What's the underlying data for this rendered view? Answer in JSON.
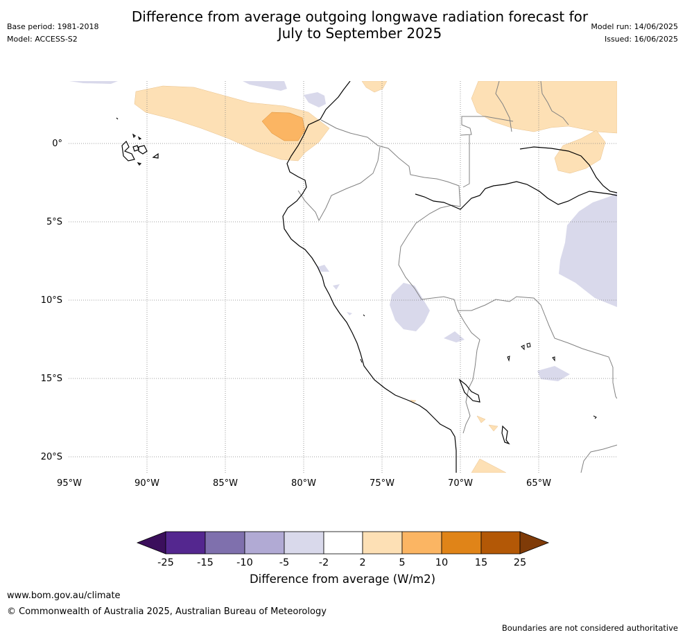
{
  "header": {
    "title_line1": "Difference from average outgoing longwave radiation forecast for",
    "title_line2": "July to September 2025",
    "base_period": "Base period: 1981-2018",
    "model": "Model: ACCESS-S2",
    "model_run": "Model run: 14/06/2025",
    "issued": "Issued: 16/06/2025"
  },
  "map": {
    "lon_ticks": [
      "95°W",
      "90°W",
      "85°W",
      "80°W",
      "75°W",
      "70°W",
      "65°W"
    ],
    "lat_ticks": [
      "0°",
      "5°S",
      "10°S",
      "15°S",
      "20°S"
    ]
  },
  "colorbar": {
    "title": "Difference from average (W/m2)",
    "ticks": [
      "-25",
      "-15",
      "-10",
      "-5",
      "-2",
      "2",
      "5",
      "10",
      "15",
      "25"
    ],
    "colors": [
      "#3b0f5c",
      "#54278f",
      "#7f70ad",
      "#b1aad4",
      "#d9d9eb",
      "#ffffff",
      "#fde0b5",
      "#fbb563",
      "#e08418",
      "#b35806",
      "#7f3b08"
    ]
  },
  "footer": {
    "url": "www.bom.gov.au/climate",
    "copyright": "© Commonwealth of Australia 2025, Australian Bureau of Meteorology",
    "disclaimer": "Boundaries are not considered authoritative"
  }
}
